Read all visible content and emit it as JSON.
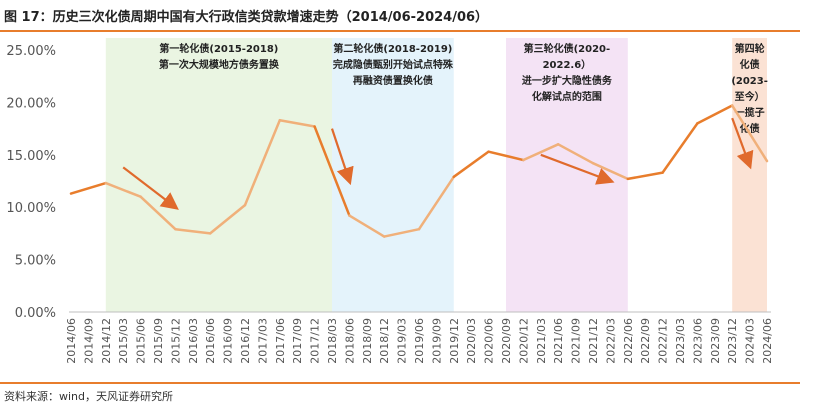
{
  "figure": {
    "title": "图 17：历史三次化债周期中国有大行政信类贷款增速走势（2014/06-2024/06）",
    "source": "资料来源：wind，天风证券研究所"
  },
  "colors": {
    "accent": "#e87d2c",
    "line_main": "#e87d2c",
    "line_debt_period": "#f0b07a",
    "band1": "#eaf5e2",
    "band2": "#e4f3fb",
    "band3": "#f4e3f5",
    "band4": "#fbe2d4",
    "arrow": "#e06a2c"
  },
  "chart_data": {
    "type": "line",
    "title": "历史三次化债周期中国有大行政信类贷款增速走势（2014/06-2024/06）",
    "xlabel": "",
    "ylabel": "",
    "ylim": [
      0,
      25
    ],
    "y_ticks": [
      "0.00%",
      "5.00%",
      "10.00%",
      "15.00%",
      "20.00%",
      "25.00%"
    ],
    "grid": false,
    "x": [
      "2014/06",
      "2014/09",
      "2014/12",
      "2015/03",
      "2015/06",
      "2015/09",
      "2015/12",
      "2016/03",
      "2016/06",
      "2016/09",
      "2016/12",
      "2017/03",
      "2017/06",
      "2017/09",
      "2017/12",
      "2018/03",
      "2018/06",
      "2018/09",
      "2018/12",
      "2019/03",
      "2019/06",
      "2019/09",
      "2019/12",
      "2020/03",
      "2020/06",
      "2020/09",
      "2020/12",
      "2021/03",
      "2021/06",
      "2021/09",
      "2021/12",
      "2022/03",
      "2022/06",
      "2022/09",
      "2022/12",
      "2023/03",
      "2023/06",
      "2023/09",
      "2023/12",
      "2024/03",
      "2024/06"
    ],
    "series": [
      {
        "points": [
          [
            "2014/06",
            11.3
          ],
          [
            "2014/12",
            12.3
          ],
          [
            "2015/06",
            11.0
          ],
          [
            "2015/12",
            7.9
          ],
          [
            "2016/06",
            7.5
          ],
          [
            "2016/12",
            10.2
          ],
          [
            "2017/06",
            18.3
          ],
          [
            "2017/12",
            17.7
          ],
          [
            "2018/06",
            9.2
          ],
          [
            "2018/12",
            7.2
          ],
          [
            "2019/06",
            7.9
          ],
          [
            "2019/12",
            12.9
          ],
          [
            "2020/06",
            15.3
          ],
          [
            "2020/12",
            14.5
          ],
          [
            "2021/06",
            16.0
          ],
          [
            "2021/12",
            14.2
          ],
          [
            "2022/06",
            12.7
          ],
          [
            "2022/12",
            13.3
          ],
          [
            "2023/06",
            18.0
          ],
          [
            "2023/12",
            19.7
          ],
          [
            "2024/06",
            14.4
          ]
        ]
      }
    ],
    "bands": [
      {
        "from": "2014/12",
        "to": "2018/03",
        "color": "#eaf5e2",
        "label": [
          "第一轮化债(2015-2018)",
          "第一次大规模地方债务置换"
        ]
      },
      {
        "from": "2018/03",
        "to": "2019/12",
        "color": "#e4f3fb",
        "label": [
          "第二轮化债(2018-2019)",
          "完成隐债甄别开始试点特殊",
          "再融资债置换化债"
        ]
      },
      {
        "from": "2020/09",
        "to": "2022/06",
        "color": "#f4e3f5",
        "label": [
          "第三轮化债(2020-",
          "2022.6）",
          "进一步扩大隐性债务",
          "化解试点的范围"
        ]
      },
      {
        "from": "2023/12",
        "to": "2024/06",
        "color": "#fbe2d4",
        "label": [
          "第四轮",
          "化债",
          "(2023-",
          "至今）",
          "一揽子",
          "化债"
        ]
      }
    ],
    "arrows": [
      {
        "from": [
          "2015/03",
          13.8
        ],
        "to": [
          "2015/12",
          10.0
        ]
      },
      {
        "from": [
          "2018/03",
          17.5
        ],
        "to": [
          "2018/06",
          12.5
        ]
      },
      {
        "from": [
          "2021/03",
          15.0
        ],
        "to": [
          "2022/03",
          12.5
        ]
      },
      {
        "from": [
          "2023/12",
          18.5
        ],
        "to": [
          "2024/03",
          14.0
        ]
      }
    ]
  }
}
